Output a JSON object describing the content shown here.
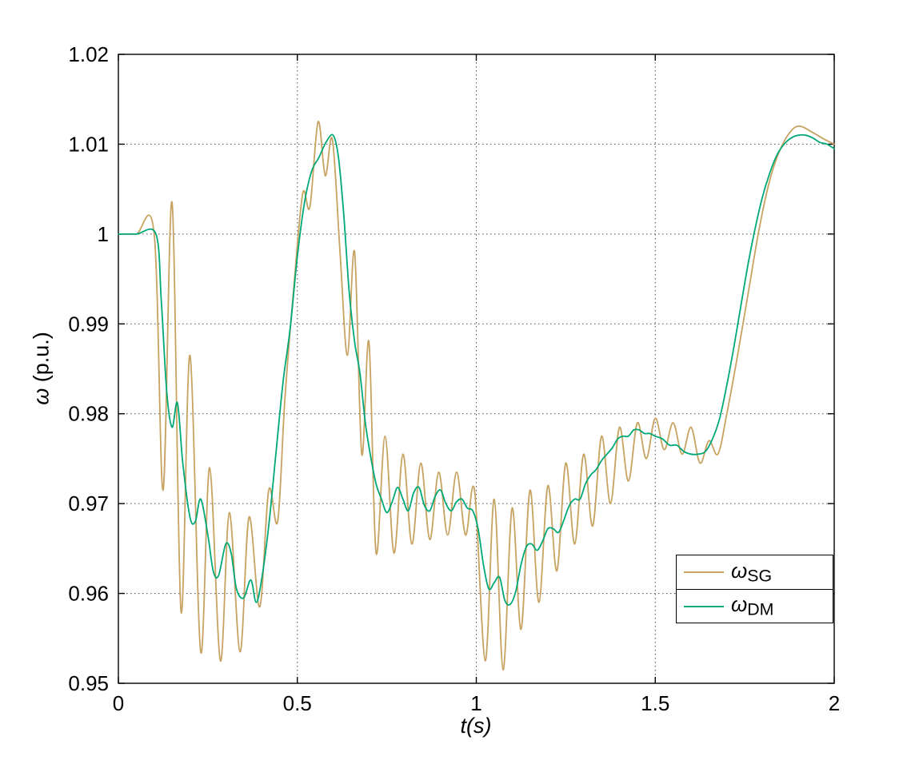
{
  "figure": {
    "background": "#ffffff",
    "axis_color": "#000000",
    "grid_color": "#4d4d4d"
  },
  "chart_data": {
    "type": "line",
    "title": "",
    "xlabel": "t(s)",
    "ylabel": "ω (p.u.)",
    "ylabel_symbol": "ω",
    "ylabel_unit": " (p.u.)",
    "xlim": [
      0,
      2
    ],
    "ylim": [
      0.95,
      1.02
    ],
    "xticks": [
      0,
      0.5,
      1,
      1.5,
      2
    ],
    "xtick_labels": [
      "0",
      "0.5",
      "1",
      "1.5",
      "2"
    ],
    "yticks": [
      0.95,
      0.96,
      0.97,
      0.98,
      0.99,
      1,
      1.01,
      1.02
    ],
    "ytick_labels": [
      "0.95",
      "0.96",
      "0.97",
      "0.98",
      "0.99",
      "1",
      "1.01",
      "1.02"
    ],
    "grid": "dotted",
    "legend": {
      "position": "lower-right",
      "entries": [
        {
          "symbol": "ω",
          "sub": "SG",
          "color": "#C7A362"
        },
        {
          "symbol": "ω",
          "sub": "DM",
          "color": "#00A878"
        }
      ]
    },
    "series": [
      {
        "name": "ω_SG",
        "color": "#C7A362",
        "points": [
          [
            0.0,
            1.0
          ],
          [
            0.05,
            1.0
          ],
          [
            0.1,
            1.0
          ],
          [
            0.125,
            0.9715
          ],
          [
            0.15,
            1.0035
          ],
          [
            0.175,
            0.958
          ],
          [
            0.2,
            0.9865
          ],
          [
            0.23,
            0.9535
          ],
          [
            0.255,
            0.974
          ],
          [
            0.285,
            0.9525
          ],
          [
            0.31,
            0.969
          ],
          [
            0.34,
            0.9535
          ],
          [
            0.365,
            0.9685
          ],
          [
            0.395,
            0.9585
          ],
          [
            0.42,
            0.9715
          ],
          [
            0.445,
            0.968
          ],
          [
            0.465,
            0.9815
          ],
          [
            0.49,
            0.994
          ],
          [
            0.515,
            1.0045
          ],
          [
            0.535,
            1.003
          ],
          [
            0.558,
            1.0125
          ],
          [
            0.578,
            1.0065
          ],
          [
            0.598,
            1.0105
          ],
          [
            0.62,
            0.9975
          ],
          [
            0.64,
            0.9865
          ],
          [
            0.66,
            0.998
          ],
          [
            0.68,
            0.9755
          ],
          [
            0.7,
            0.988
          ],
          [
            0.72,
            0.9645
          ],
          [
            0.745,
            0.9775
          ],
          [
            0.77,
            0.9645
          ],
          [
            0.795,
            0.9755
          ],
          [
            0.82,
            0.9655
          ],
          [
            0.845,
            0.9745
          ],
          [
            0.87,
            0.966
          ],
          [
            0.895,
            0.9735
          ],
          [
            0.92,
            0.9665
          ],
          [
            0.945,
            0.9735
          ],
          [
            0.97,
            0.9665
          ],
          [
            0.995,
            0.9715
          ],
          [
            1.025,
            0.9525
          ],
          [
            1.05,
            0.9705
          ],
          [
            1.075,
            0.9515
          ],
          [
            1.1,
            0.9695
          ],
          [
            1.125,
            0.956
          ],
          [
            1.15,
            0.9715
          ],
          [
            1.175,
            0.959
          ],
          [
            1.2,
            0.972
          ],
          [
            1.225,
            0.9625
          ],
          [
            1.25,
            0.9745
          ],
          [
            1.275,
            0.9655
          ],
          [
            1.3,
            0.9755
          ],
          [
            1.325,
            0.9675
          ],
          [
            1.35,
            0.9775
          ],
          [
            1.375,
            0.97
          ],
          [
            1.4,
            0.9785
          ],
          [
            1.425,
            0.9725
          ],
          [
            1.45,
            0.979
          ],
          [
            1.475,
            0.975
          ],
          [
            1.5,
            0.9795
          ],
          [
            1.525,
            0.976
          ],
          [
            1.55,
            0.979
          ],
          [
            1.575,
            0.9755
          ],
          [
            1.6,
            0.9785
          ],
          [
            1.625,
            0.9745
          ],
          [
            1.65,
            0.977
          ],
          [
            1.675,
            0.9755
          ],
          [
            1.7,
            0.98
          ],
          [
            1.73,
            0.9865
          ],
          [
            1.76,
            0.9935
          ],
          [
            1.79,
            1.0005
          ],
          [
            1.82,
            1.006
          ],
          [
            1.85,
            1.0095
          ],
          [
            1.88,
            1.0115
          ],
          [
            1.905,
            1.012
          ],
          [
            1.94,
            1.0113
          ],
          [
            1.97,
            1.0106
          ],
          [
            2.0,
            1.01
          ]
        ]
      },
      {
        "name": "ω_DM",
        "color": "#00A878",
        "points": [
          [
            0.0,
            1.0
          ],
          [
            0.05,
            1.0
          ],
          [
            0.105,
            1.0
          ],
          [
            0.12,
            0.9925
          ],
          [
            0.135,
            0.9825
          ],
          [
            0.15,
            0.9785
          ],
          [
            0.165,
            0.9812
          ],
          [
            0.18,
            0.9745
          ],
          [
            0.2,
            0.9685
          ],
          [
            0.215,
            0.968
          ],
          [
            0.23,
            0.9705
          ],
          [
            0.25,
            0.9665
          ],
          [
            0.265,
            0.9625
          ],
          [
            0.28,
            0.962
          ],
          [
            0.3,
            0.9655
          ],
          [
            0.315,
            0.9645
          ],
          [
            0.33,
            0.9605
          ],
          [
            0.35,
            0.9595
          ],
          [
            0.37,
            0.9615
          ],
          [
            0.385,
            0.959
          ],
          [
            0.4,
            0.9615
          ],
          [
            0.42,
            0.9675
          ],
          [
            0.44,
            0.9755
          ],
          [
            0.46,
            0.9835
          ],
          [
            0.48,
            0.9895
          ],
          [
            0.5,
            0.9975
          ],
          [
            0.52,
            1.0035
          ],
          [
            0.54,
            1.007
          ],
          [
            0.56,
            1.0085
          ],
          [
            0.58,
            1.0102
          ],
          [
            0.6,
            1.011
          ],
          [
            0.615,
            1.0085
          ],
          [
            0.63,
            1.002
          ],
          [
            0.645,
            0.9935
          ],
          [
            0.66,
            0.988
          ],
          [
            0.675,
            0.9845
          ],
          [
            0.69,
            0.979
          ],
          [
            0.705,
            0.9752
          ],
          [
            0.72,
            0.9722
          ],
          [
            0.735,
            0.9705
          ],
          [
            0.75,
            0.969
          ],
          [
            0.765,
            0.9702
          ],
          [
            0.78,
            0.9718
          ],
          [
            0.795,
            0.9705
          ],
          [
            0.81,
            0.9692
          ],
          [
            0.825,
            0.9712
          ],
          [
            0.84,
            0.9718
          ],
          [
            0.855,
            0.9698
          ],
          [
            0.87,
            0.9692
          ],
          [
            0.885,
            0.9708
          ],
          [
            0.9,
            0.9715
          ],
          [
            0.915,
            0.97
          ],
          [
            0.93,
            0.9692
          ],
          [
            0.945,
            0.9702
          ],
          [
            0.96,
            0.9705
          ],
          [
            0.975,
            0.9695
          ],
          [
            0.99,
            0.9692
          ],
          [
            1.005,
            0.9672
          ],
          [
            1.02,
            0.9632
          ],
          [
            1.035,
            0.9605
          ],
          [
            1.05,
            0.9612
          ],
          [
            1.065,
            0.9618
          ],
          [
            1.08,
            0.9592
          ],
          [
            1.095,
            0.9588
          ],
          [
            1.11,
            0.9602
          ],
          [
            1.125,
            0.9632
          ],
          [
            1.14,
            0.9652
          ],
          [
            1.155,
            0.9655
          ],
          [
            1.17,
            0.9648
          ],
          [
            1.185,
            0.9658
          ],
          [
            1.2,
            0.9672
          ],
          [
            1.215,
            0.9672
          ],
          [
            1.23,
            0.9668
          ],
          [
            1.245,
            0.9682
          ],
          [
            1.26,
            0.9698
          ],
          [
            1.275,
            0.9705
          ],
          [
            1.29,
            0.9705
          ],
          [
            1.305,
            0.9722
          ],
          [
            1.32,
            0.9732
          ],
          [
            1.335,
            0.9738
          ],
          [
            1.35,
            0.9748
          ],
          [
            1.365,
            0.9755
          ],
          [
            1.38,
            0.9762
          ],
          [
            1.395,
            0.9772
          ],
          [
            1.41,
            0.9775
          ],
          [
            1.425,
            0.9775
          ],
          [
            1.44,
            0.9782
          ],
          [
            1.455,
            0.9782
          ],
          [
            1.47,
            0.9778
          ],
          [
            1.485,
            0.9778
          ],
          [
            1.5,
            0.9775
          ],
          [
            1.52,
            0.9772
          ],
          [
            1.54,
            0.9765
          ],
          [
            1.56,
            0.9765
          ],
          [
            1.58,
            0.9758
          ],
          [
            1.6,
            0.9755
          ],
          [
            1.62,
            0.9755
          ],
          [
            1.64,
            0.9758
          ],
          [
            1.66,
            0.9772
          ],
          [
            1.68,
            0.9795
          ],
          [
            1.7,
            0.9832
          ],
          [
            1.72,
            0.9875
          ],
          [
            1.74,
            0.9922
          ],
          [
            1.76,
            0.9968
          ],
          [
            1.78,
            1.0008
          ],
          [
            1.8,
            1.0042
          ],
          [
            1.82,
            1.0068
          ],
          [
            1.84,
            1.0088
          ],
          [
            1.86,
            1.01
          ],
          [
            1.88,
            1.0107
          ],
          [
            1.9,
            1.011
          ],
          [
            1.92,
            1.011
          ],
          [
            1.94,
            1.0107
          ],
          [
            1.96,
            1.0102
          ],
          [
            1.98,
            1.01
          ],
          [
            2.0,
            1.0095
          ]
        ]
      }
    ]
  }
}
